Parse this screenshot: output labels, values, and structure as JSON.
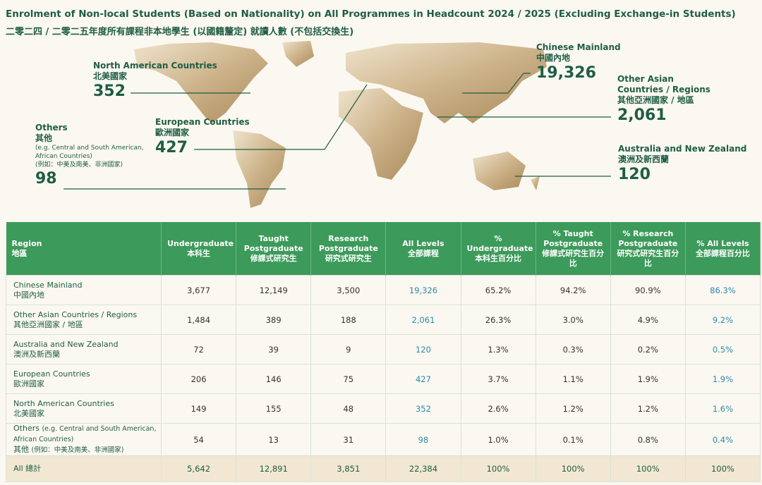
{
  "header": {
    "title_en": "Enrolment of Non-local Students (Based on Nationality) on All Programmes in Headcount 2024 / 2025 (Excluding Exchange-in Students)",
    "title_zh": "二零二四 / 二零二五年度所有課程非本地學生 (以國籍釐定) 就讀人數 (不包括交換生)"
  },
  "map_labels": [
    {
      "en": "North American Countries",
      "zh": "北美國家",
      "value": "352"
    },
    {
      "en": "European Countries",
      "zh": "歐洲國家",
      "value": "427"
    },
    {
      "en": "Others",
      "zh": "其他",
      "note_en": "(e.g. Central and South American, African Countries)",
      "note_zh": "(例如：中美及南美、非洲國家)",
      "value": "98"
    },
    {
      "en": "Chinese Mainland",
      "zh": "中國內地",
      "value": "19,326"
    },
    {
      "en": "Other Asian Countries / Regions",
      "zh": "其他亞洲國家 / 地區",
      "value": "2,061"
    },
    {
      "en": "Australia and New Zealand",
      "zh": "澳洲及新西蘭",
      "value": "120"
    }
  ],
  "table": {
    "header": [
      {
        "en": "Region",
        "zh": "地區"
      },
      {
        "en": "Undergraduate",
        "zh": "本科生"
      },
      {
        "en": "Taught Postgraduate",
        "zh": "修課式研究生"
      },
      {
        "en": "Research Postgraduate",
        "zh": "研究式研究生"
      },
      {
        "en": "All Levels",
        "zh": "全部課程"
      },
      {
        "en": "% Undergraduate",
        "zh": "本科生百分比"
      },
      {
        "en": "% Taught Postgraduate",
        "zh": "修課式研究生百分比"
      },
      {
        "en": "% Research Postgraduate",
        "zh": "研究式研究生百分比"
      },
      {
        "en": "% All Levels",
        "zh": "全部課程百分比"
      }
    ],
    "rows": [
      {
        "region": {
          "en": "Chinese Mainland",
          "zh": "中國內地"
        },
        "cells": [
          "3,677",
          "12,149",
          "3,500",
          "19,326",
          "65.2%",
          "94.2%",
          "90.9%",
          "86.3%"
        ]
      },
      {
        "region": {
          "en": "Other Asian Countries / Regions",
          "zh": "其他亞洲國家 / 地區"
        },
        "cells": [
          "1,484",
          "389",
          "188",
          "2,061",
          "26.3%",
          "3.0%",
          "4.9%",
          "9.2%"
        ]
      },
      {
        "region": {
          "en": "Australia and New Zealand",
          "zh": "澳洲及新西蘭"
        },
        "cells": [
          "72",
          "39",
          "9",
          "120",
          "1.3%",
          "0.3%",
          "0.2%",
          "0.5%"
        ]
      },
      {
        "region": {
          "en": "European Countries",
          "zh": "歐洲國家"
        },
        "cells": [
          "206",
          "146",
          "75",
          "427",
          "3.7%",
          "1.1%",
          "1.9%",
          "1.9%"
        ]
      },
      {
        "region": {
          "en": "North American Countries",
          "zh": "北美國家"
        },
        "cells": [
          "149",
          "155",
          "48",
          "352",
          "2.6%",
          "1.2%",
          "1.2%",
          "1.6%"
        ]
      },
      {
        "region": {
          "en": "Others",
          "zh": "其他",
          "note_en": "(e.g. Central and South American, African Countries)",
          "note_zh": "(例如：中美及南美、非洲國家)"
        },
        "cells": [
          "54",
          "13",
          "31",
          "98",
          "1.0%",
          "0.1%",
          "0.8%",
          "0.4%"
        ]
      }
    ],
    "total": {
      "label": "All 總計",
      "cells": [
        "5,642",
        "12,891",
        "3,851",
        "22,384",
        "100%",
        "100%",
        "100%",
        "100%"
      ]
    }
  }
}
